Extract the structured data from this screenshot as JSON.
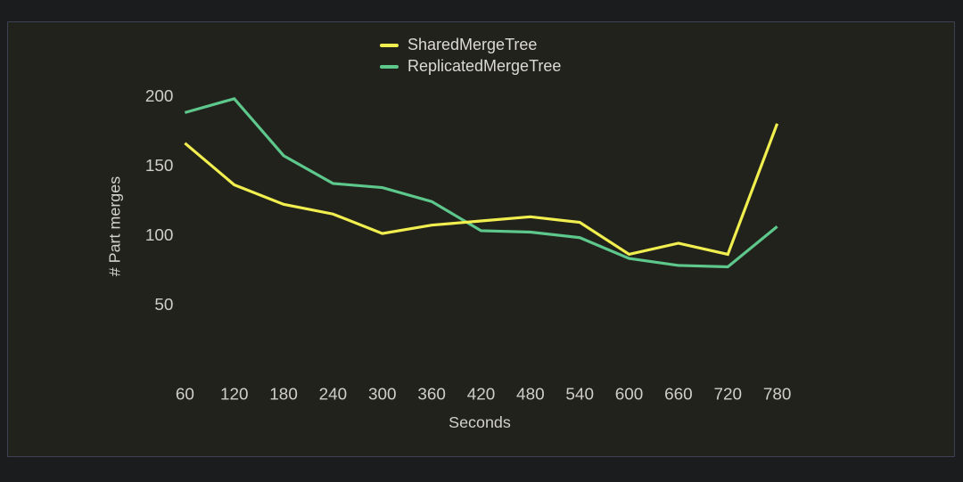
{
  "panel": {
    "background": "#21221b",
    "border_color": "#3e4054",
    "outer_background": "#1b1c1d"
  },
  "chart_data": {
    "type": "line",
    "x": [
      60,
      120,
      180,
      240,
      300,
      360,
      420,
      480,
      540,
      600,
      660,
      720,
      780
    ],
    "series": [
      {
        "name": "SharedMergeTree",
        "color": "#f1ee4f",
        "values": [
          166,
          136,
          122,
          115,
          101,
          107,
          110,
          113,
          109,
          86,
          94,
          86,
          180
        ]
      },
      {
        "name": "ReplicatedMergeTree",
        "color": "#5dc78c",
        "values": [
          188,
          198,
          157,
          137,
          134,
          124,
          103,
          102,
          98,
          83,
          78,
          77,
          106
        ]
      }
    ],
    "xlabel": "Seconds",
    "ylabel": "# Part merges",
    "yticks": [
      50,
      100,
      150,
      200
    ],
    "ylim": [
      40,
      210
    ],
    "xlim": [
      60,
      780
    ],
    "grid": false,
    "legend_position": "top-center",
    "tick_color": "#cfcec8",
    "label_color": "#d2d1cb"
  }
}
